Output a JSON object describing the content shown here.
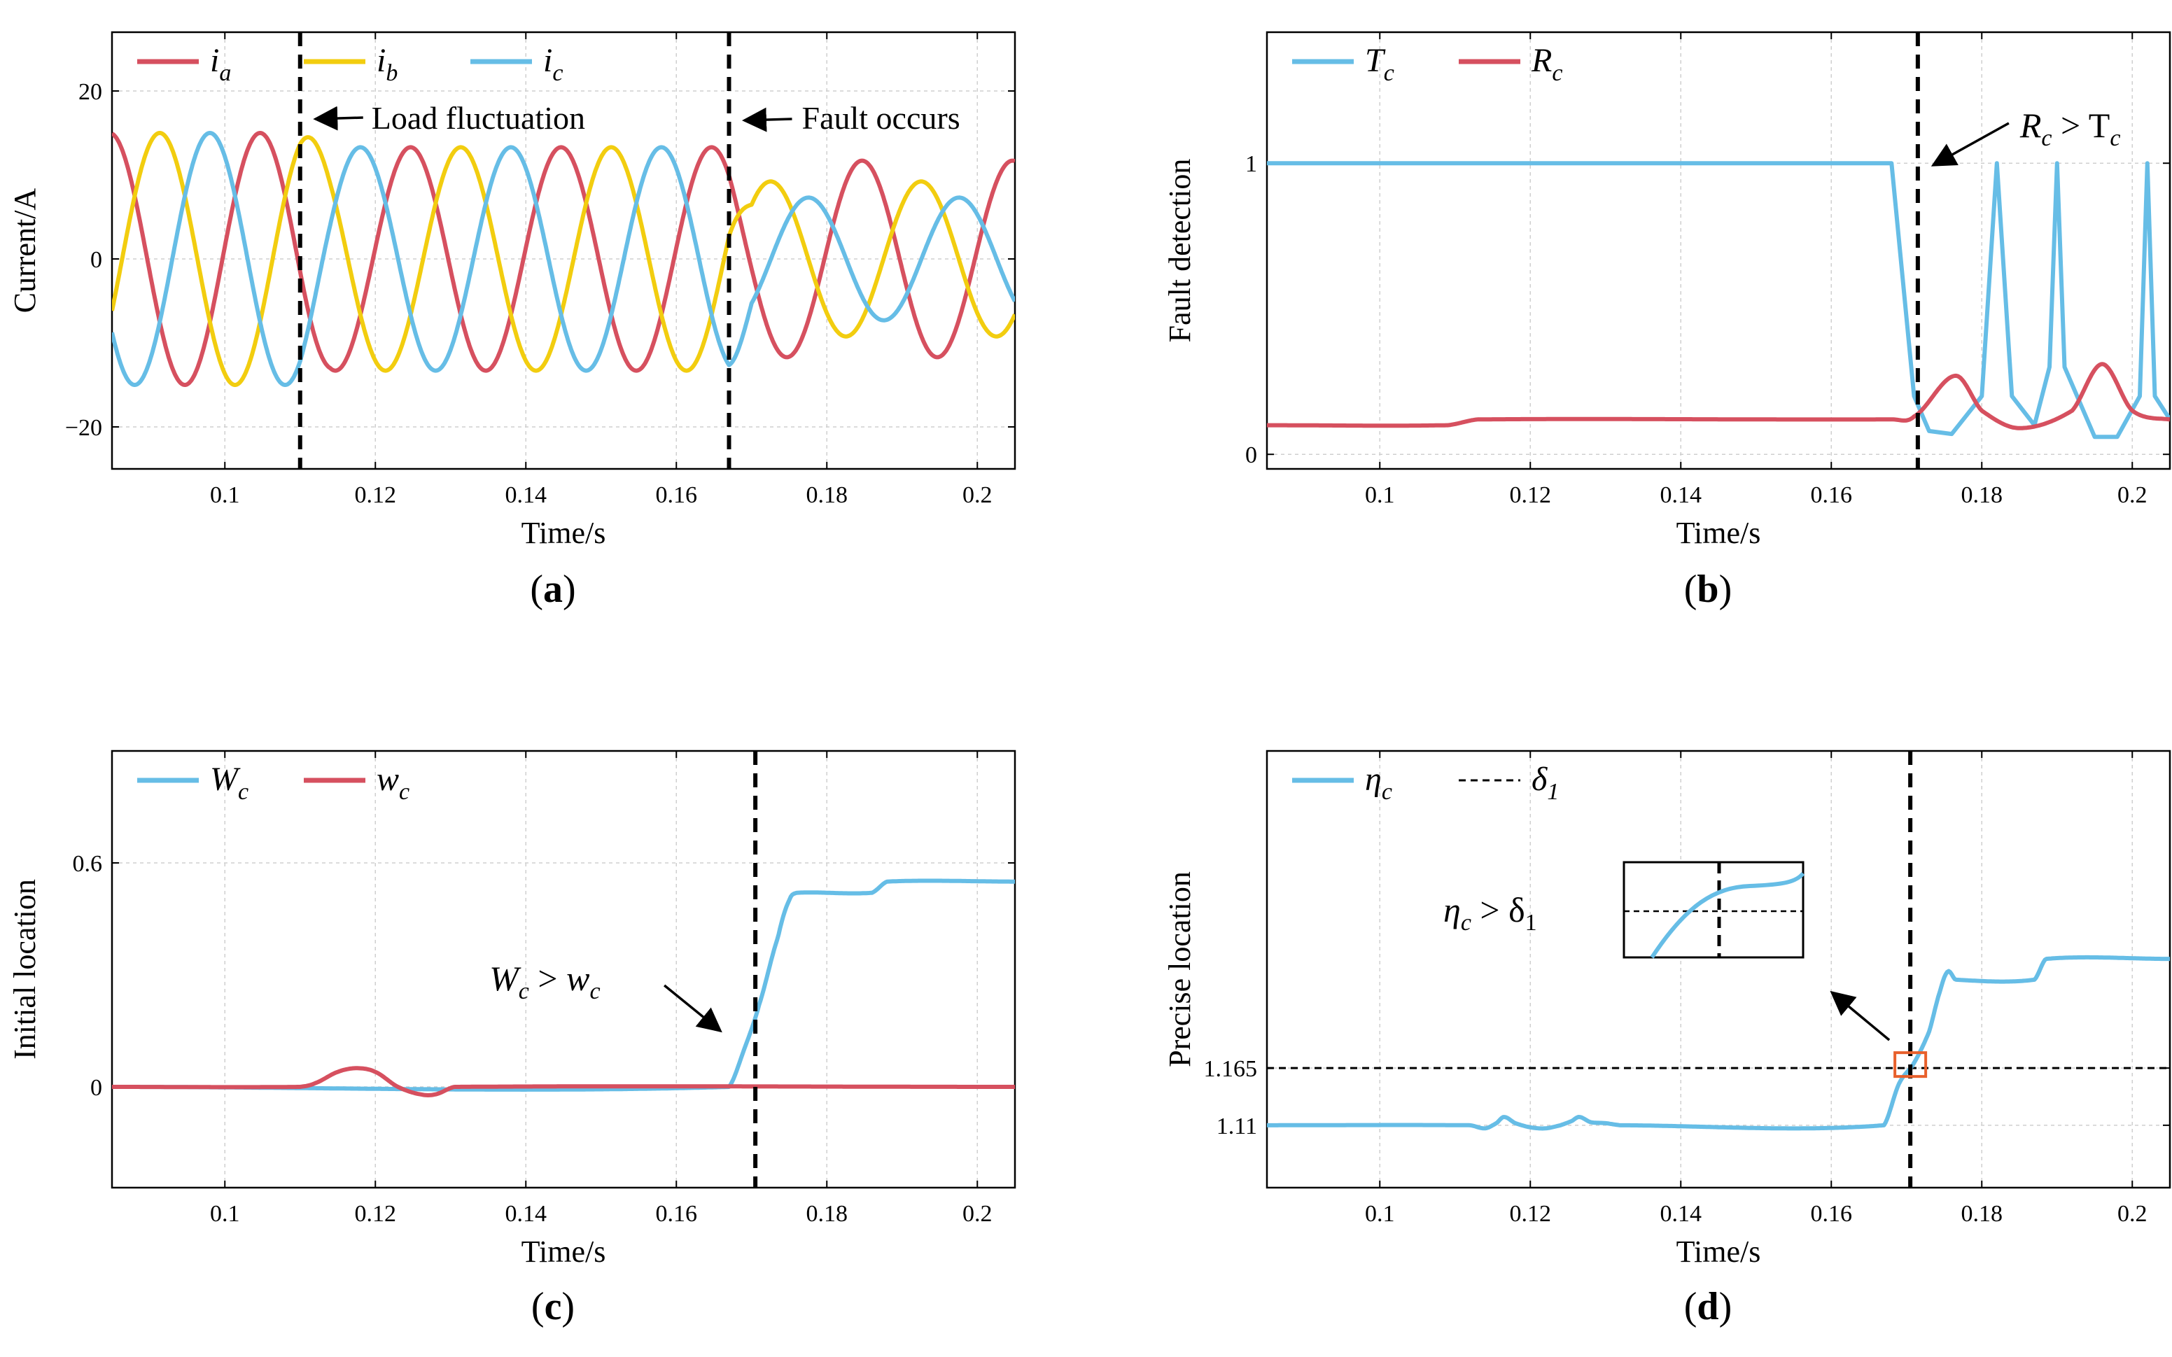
{
  "colors": {
    "red": "#d6505f",
    "yellow": "#f2cd0f",
    "blue": "#66bde6",
    "black": "#000000",
    "orange": "#e8602c"
  },
  "chart_data": [
    {
      "id": "a",
      "type": "line",
      "caption_letter": "a",
      "xlabel": "Time/s",
      "ylabel": "Current/A",
      "xlim": [
        0.085,
        0.205
      ],
      "ylim": [
        -25,
        27
      ],
      "xticks": [
        0.1,
        0.12,
        0.14,
        0.16,
        0.18,
        0.2
      ],
      "xtick_labels": [
        "0.1",
        "0.12",
        "0.14",
        "0.16",
        "0.18",
        "0.2"
      ],
      "yticks": [
        -20,
        0,
        20
      ],
      "ytick_labels": [
        "−20",
        "0",
        "20"
      ],
      "grid": true,
      "legend": [
        {
          "base": "i",
          "sub": "a",
          "color": "red"
        },
        {
          "base": "i",
          "sub": "b",
          "color": "yellow"
        },
        {
          "base": "i",
          "sub": "c",
          "color": "blue"
        }
      ],
      "series": [
        {
          "name": "ia",
          "color": "red",
          "phase_deg": 0,
          "model": "three-phase current: amplitude 15 A before 0.11 s, 13.3 A after, phase a unbalanced after fault at 0.167 s"
        },
        {
          "name": "ib",
          "color": "yellow",
          "phase_deg": -120
        },
        {
          "name": "ic",
          "color": "blue",
          "phase_deg": 120
        }
      ],
      "params": {
        "freq_hz": 50,
        "amp_before": 15,
        "amp_after": 13.3,
        "load_change_t": 0.11,
        "fault_t": 0.167
      },
      "vlines": [
        0.11,
        0.167
      ],
      "annotations": [
        "Load fluctuation",
        "Fault occurs"
      ]
    },
    {
      "id": "b",
      "type": "line",
      "caption_letter": "b",
      "xlabel": "Time/s",
      "ylabel": "Fault detection",
      "xlim": [
        0.085,
        0.205
      ],
      "ylim": [
        -0.05,
        1.45
      ],
      "xticks": [
        0.1,
        0.12,
        0.14,
        0.16,
        0.18,
        0.2
      ],
      "xtick_labels": [
        "0.1",
        "0.12",
        "0.14",
        "0.16",
        "0.18",
        "0.2"
      ],
      "yticks": [
        0,
        1
      ],
      "ytick_labels": [
        "0",
        "1"
      ],
      "grid": true,
      "legend": [
        {
          "base": "T",
          "sub": "c",
          "color": "blue"
        },
        {
          "base": "R",
          "sub": "c",
          "color": "red"
        }
      ],
      "series": [
        {
          "name": "Tc",
          "color": "blue",
          "points": [
            [
              0.085,
              1.0
            ],
            [
              0.168,
              1.0
            ],
            [
              0.1695,
              0.6
            ],
            [
              0.171,
              0.2
            ],
            [
              0.173,
              0.08
            ],
            [
              0.176,
              0.07
            ],
            [
              0.18,
              0.2
            ],
            [
              0.182,
              1.0
            ],
            [
              0.184,
              0.2
            ],
            [
              0.187,
              0.1
            ],
            [
              0.189,
              0.3
            ],
            [
              0.19,
              1.0
            ],
            [
              0.191,
              0.3
            ],
            [
              0.195,
              0.06
            ],
            [
              0.198,
              0.06
            ],
            [
              0.201,
              0.2
            ],
            [
              0.202,
              1.0
            ],
            [
              0.203,
              0.2
            ],
            [
              0.205,
              0.12
            ]
          ]
        },
        {
          "name": "Rc",
          "color": "red",
          "points": [
            [
              0.085,
              0.1
            ],
            [
              0.109,
              0.1
            ],
            [
              0.113,
              0.12
            ],
            [
              0.168,
              0.12
            ],
            [
              0.171,
              0.13
            ],
            [
              0.1765,
              0.27
            ],
            [
              0.18,
              0.15
            ],
            [
              0.185,
              0.09
            ],
            [
              0.192,
              0.15
            ],
            [
              0.196,
              0.31
            ],
            [
              0.2,
              0.15
            ],
            [
              0.205,
              0.12
            ]
          ]
        }
      ],
      "vlines": [
        0.1715
      ],
      "annotations": [
        "R_c > T_c"
      ]
    },
    {
      "id": "c",
      "type": "line",
      "caption_letter": "c",
      "xlabel": "Time/s",
      "ylabel": "Initial location",
      "xlim": [
        0.085,
        0.205
      ],
      "ylim": [
        -0.27,
        0.9
      ],
      "xticks": [
        0.1,
        0.12,
        0.14,
        0.16,
        0.18,
        0.2
      ],
      "xtick_labels": [
        "0.1",
        "0.12",
        "0.14",
        "0.16",
        "0.18",
        "0.2"
      ],
      "yticks": [
        0,
        0.6
      ],
      "ytick_labels": [
        "0",
        "0.6"
      ],
      "grid": true,
      "legend": [
        {
          "base": "W",
          "sub": "c",
          "color": "blue"
        },
        {
          "base": "w",
          "sub": "c",
          "color": "red"
        }
      ],
      "series": [
        {
          "name": "Wc",
          "color": "blue",
          "points": [
            [
              0.085,
              0
            ],
            [
              0.167,
              0
            ],
            [
              0.169,
              0.1
            ],
            [
              0.171,
              0.22
            ],
            [
              0.1735,
              0.4
            ],
            [
              0.175,
              0.5
            ],
            [
              0.176,
              0.52
            ],
            [
              0.186,
              0.52
            ],
            [
              0.188,
              0.55
            ],
            [
              0.205,
              0.55
            ]
          ]
        },
        {
          "name": "wc",
          "color": "red",
          "points": [
            [
              0.085,
              0
            ],
            [
              0.11,
              0
            ],
            [
              0.112,
              0.01
            ],
            [
              0.115,
              0.04
            ],
            [
              0.1175,
              0.05
            ],
            [
              0.12,
              0.04
            ],
            [
              0.123,
              0.0
            ],
            [
              0.126,
              -0.02
            ],
            [
              0.128,
              -0.02
            ],
            [
              0.1305,
              0.0
            ],
            [
              0.205,
              0
            ]
          ]
        }
      ],
      "vlines": [
        0.1705
      ],
      "annotations": [
        "W_c > w_c"
      ]
    },
    {
      "id": "d",
      "type": "line",
      "caption_letter": "d",
      "xlabel": "Time/s",
      "ylabel": "Precise location",
      "xlim": [
        0.085,
        0.205
      ],
      "ylim": [
        1.05,
        1.47
      ],
      "xticks": [
        0.1,
        0.12,
        0.14,
        0.16,
        0.18,
        0.2
      ],
      "xtick_labels": [
        "0.1",
        "0.12",
        "0.14",
        "0.16",
        "0.18",
        "0.2"
      ],
      "yticks": [
        1.11,
        1.165
      ],
      "ytick_labels": [
        "1.11",
        "1.165"
      ],
      "grid": true,
      "legend": [
        {
          "base": "η",
          "sub": "c",
          "color": "blue",
          "style": "solid"
        },
        {
          "base": "δ",
          "sub": "1",
          "color": "black",
          "style": "dashed"
        }
      ],
      "threshold": 1.165,
      "series": [
        {
          "name": "eta_c",
          "color": "blue",
          "points": [
            [
              0.085,
              1.11
            ],
            [
              0.112,
              1.11
            ],
            [
              0.114,
              1.107
            ],
            [
              0.1155,
              1.112
            ],
            [
              0.1165,
              1.118
            ],
            [
              0.118,
              1.112
            ],
            [
              0.12,
              1.108
            ],
            [
              0.122,
              1.107
            ],
            [
              0.124,
              1.11
            ],
            [
              0.1255,
              1.114
            ],
            [
              0.1265,
              1.118
            ],
            [
              0.128,
              1.113
            ],
            [
              0.13,
              1.112
            ],
            [
              0.132,
              1.11
            ],
            [
              0.167,
              1.11
            ],
            [
              0.169,
              1.15
            ],
            [
              0.171,
              1.17
            ],
            [
              0.173,
              1.2
            ],
            [
              0.1745,
              1.24
            ],
            [
              0.1755,
              1.258
            ],
            [
              0.1765,
              1.25
            ],
            [
              0.187,
              1.25
            ],
            [
              0.1885,
              1.27
            ],
            [
              0.205,
              1.27
            ]
          ]
        }
      ],
      "vlines": [
        0.1705
      ],
      "annotations": [
        "η_c > δ_1"
      ]
    }
  ]
}
